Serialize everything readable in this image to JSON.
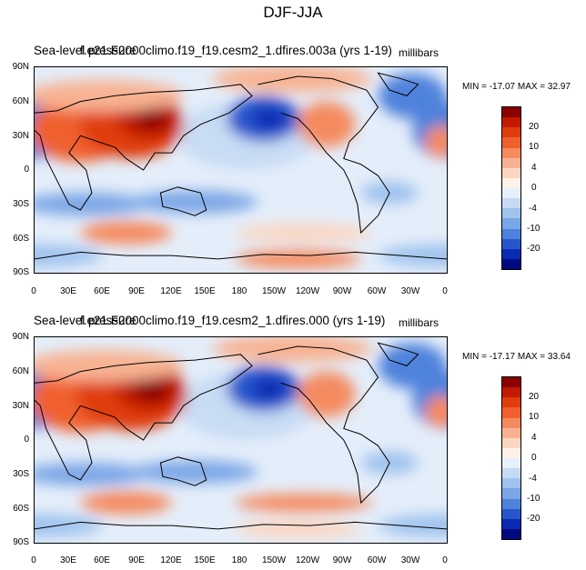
{
  "figure": {
    "title": "DJF-JJA"
  },
  "axes": {
    "lat_ticks": [
      "90N",
      "60N",
      "30N",
      "0",
      "30S",
      "60S",
      "90S"
    ],
    "lon_ticks": [
      "0",
      "30E",
      "60E",
      "90E",
      "120E",
      "150E",
      "180",
      "150W",
      "120W",
      "90W",
      "60W",
      "30W",
      "0"
    ]
  },
  "panels": [
    {
      "left_title_1": "Sea-level pressure",
      "left_title_2": "f.e21.F2000climo.f19_f19.cesm2_1.dfires.003a (yrs 1-19)",
      "units": "millibars",
      "minmax": "MIN = -17.07  MAX =  32.97",
      "min": -17.07,
      "max": 32.97
    },
    {
      "left_title_1": "Sea-level pressure",
      "left_title_2": "f.e21.F2000climo.f19_f19.cesm2_1.dfires.000 (yrs 1-19)",
      "units": "millibars",
      "minmax": "MIN = -17.17  MAX =  33.64",
      "min": -17.17,
      "max": 33.64
    }
  ],
  "colorbar": {
    "labels": [
      "20",
      "10",
      "4",
      "0",
      "-4",
      "-10",
      "-20"
    ],
    "colors": [
      "#8b0000",
      "#c21a00",
      "#e03c0c",
      "#f0602e",
      "#f58a5e",
      "#f8b293",
      "#fbd6c0",
      "#fdf1e8",
      "#e6f0fb",
      "#c6daf5",
      "#9fc2ee",
      "#7aa6e6",
      "#4f82dc",
      "#2756cc",
      "#0a2ab4",
      "#000a80"
    ]
  }
}
